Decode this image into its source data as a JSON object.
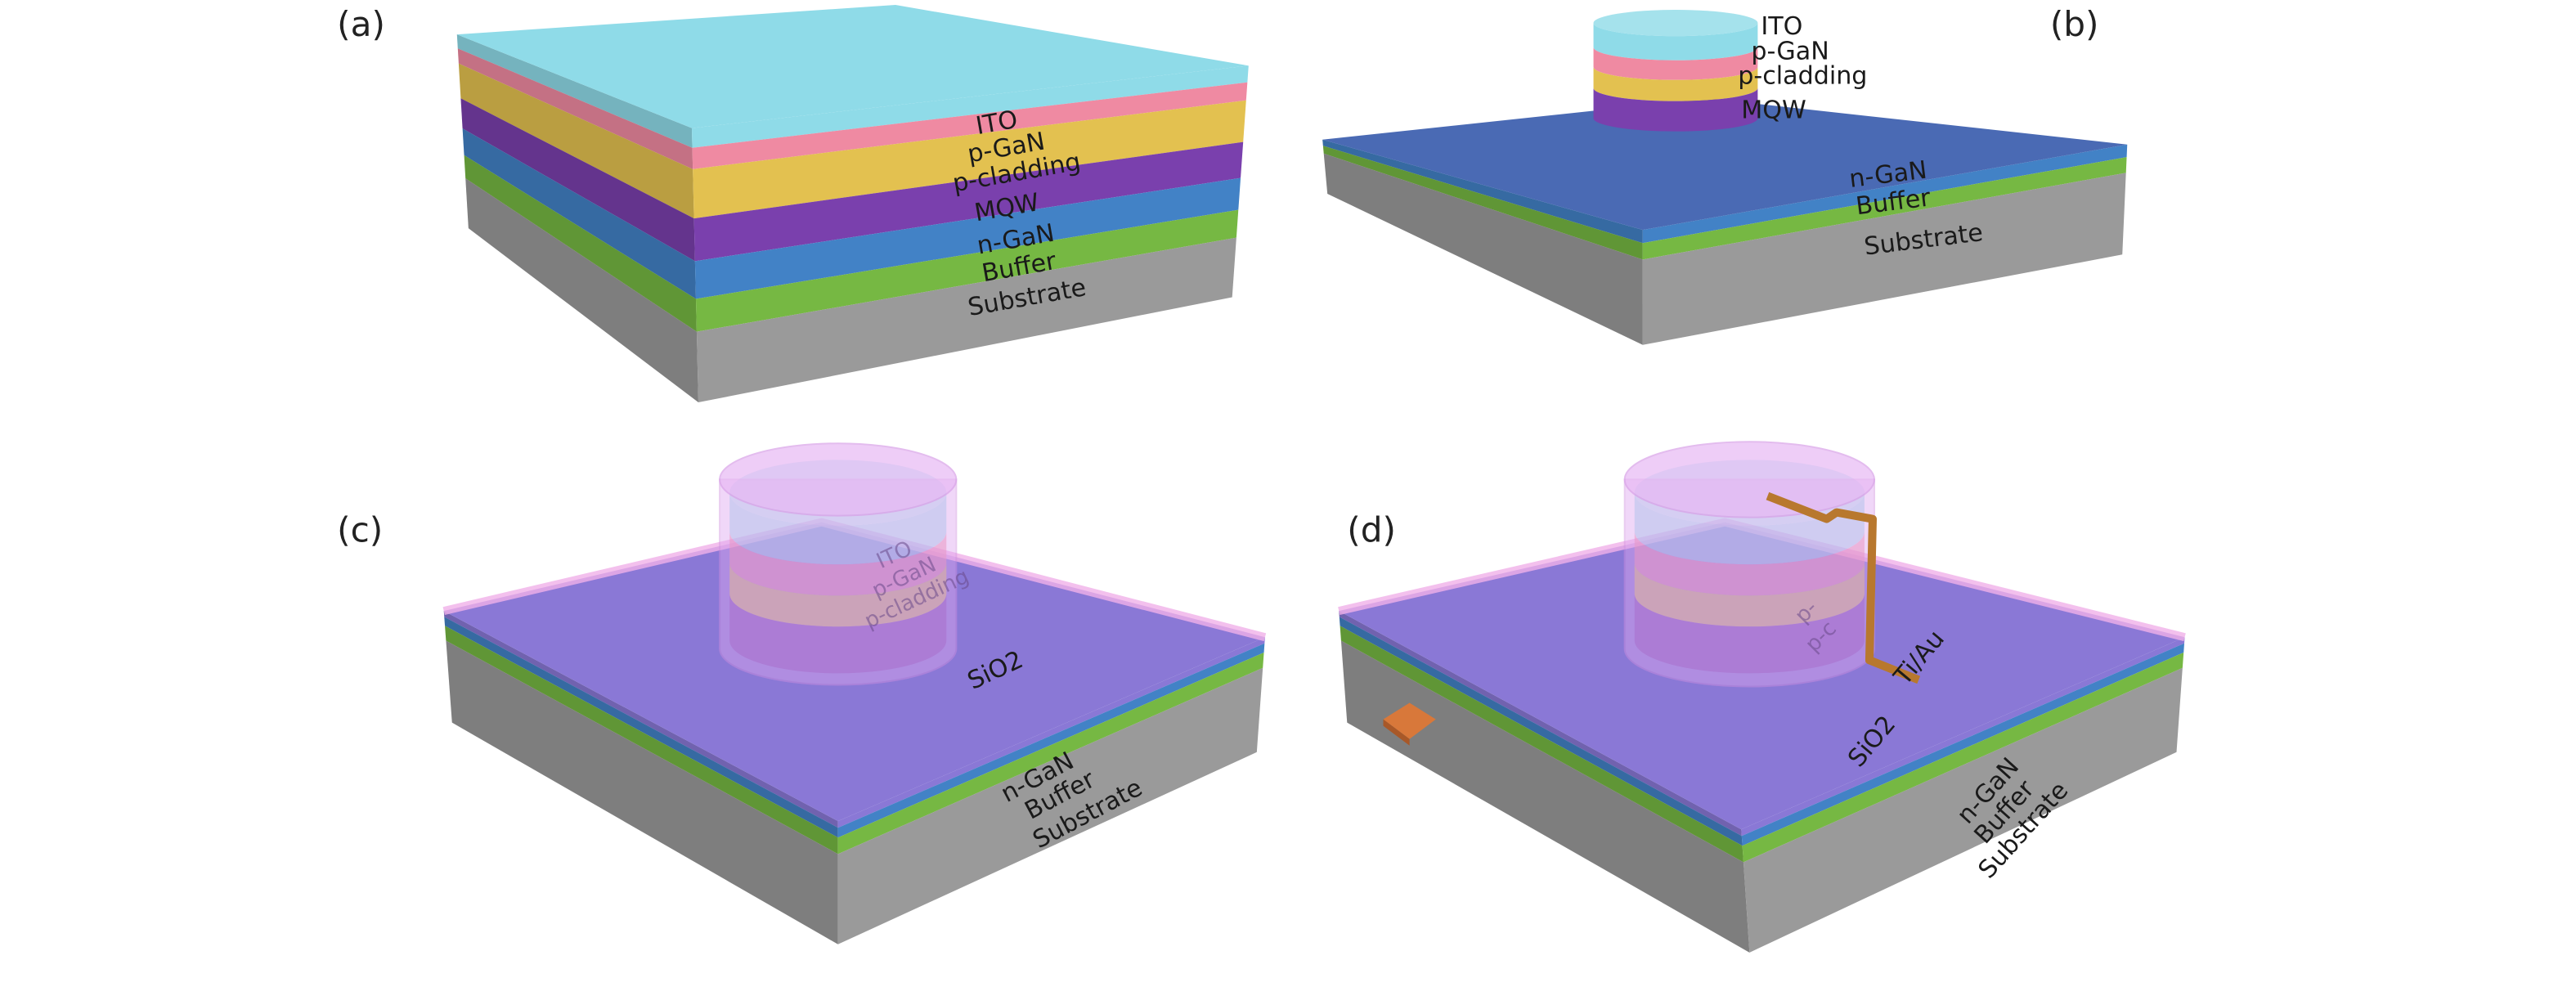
{
  "panels": [
    {
      "id": "a",
      "label": "(a)",
      "layers": [
        "ITO",
        "p-GaN",
        "p-cladding",
        "MQW",
        "n-GaN",
        "Buffer",
        "Substrate"
      ]
    },
    {
      "id": "b",
      "label": "(b)",
      "mesa_layers": [
        "ITO",
        "p-GaN",
        "p-cladding",
        "MQW"
      ],
      "layers": [
        "n-GaN",
        "Buffer",
        "Substrate"
      ]
    },
    {
      "id": "c",
      "label": "(c)",
      "mesa_layers": [
        "ITO",
        "p-GaN",
        "p-cladding"
      ],
      "passivation": "SiO2",
      "layers": [
        "n-GaN",
        "Buffer",
        "Substrate"
      ]
    },
    {
      "id": "d",
      "label": "(d)",
      "mesa_layers": [
        "p-",
        "p-c"
      ],
      "passivation": "SiO2",
      "electrode": "Ti/Au",
      "layers": [
        "n-GaN",
        "Buffer",
        "Substrate"
      ]
    }
  ],
  "colors": {
    "ITO": "#8fdbe8",
    "p-GaN": "#ef8aa2",
    "p-cladding": "#e3c150",
    "MQW": "#7a40ad",
    "n-GaN": "#4282c6",
    "Buffer": "#76b843",
    "Substrate": "#9a9a9a",
    "SiO2": "#8a78d6",
    "SiO2-rim": "#f0b0e8",
    "Ti/Au": "#b8782e",
    "pad": "#d8783a"
  }
}
